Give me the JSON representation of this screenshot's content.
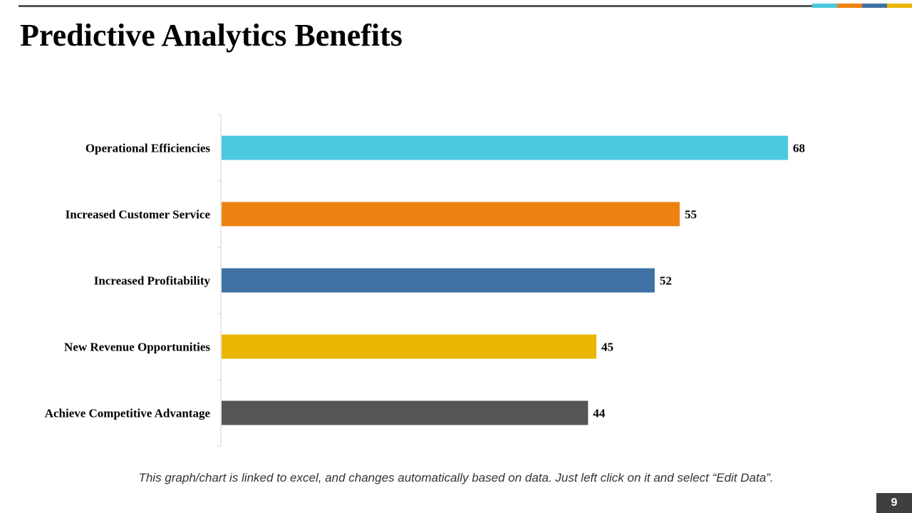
{
  "slide": {
    "title": "Predictive Analytics Benefits",
    "footnote": "This graph/chart is linked to excel, and changes automatically based on data. Just left click on it and select “Edit Data”.",
    "page_number": "9",
    "accent_colors": [
      "#4bc9de",
      "#ee8211",
      "#3f72a3",
      "#ebb601"
    ]
  },
  "chart_data": {
    "type": "bar",
    "orientation": "horizontal",
    "categories": [
      "Operational Efficiencies",
      "Increased Customer Service",
      "Increased Profitability",
      "New Revenue Opportunities",
      "Achieve Competitive Advantage"
    ],
    "values": [
      68,
      55,
      52,
      45,
      44
    ],
    "colors": [
      "#4bc9de",
      "#ee8211",
      "#3f72a3",
      "#ebb601",
      "#555557"
    ],
    "data_labels": true,
    "xlim": [
      0,
      70
    ],
    "grid": false,
    "title": "",
    "xlabel": "",
    "ylabel": ""
  }
}
